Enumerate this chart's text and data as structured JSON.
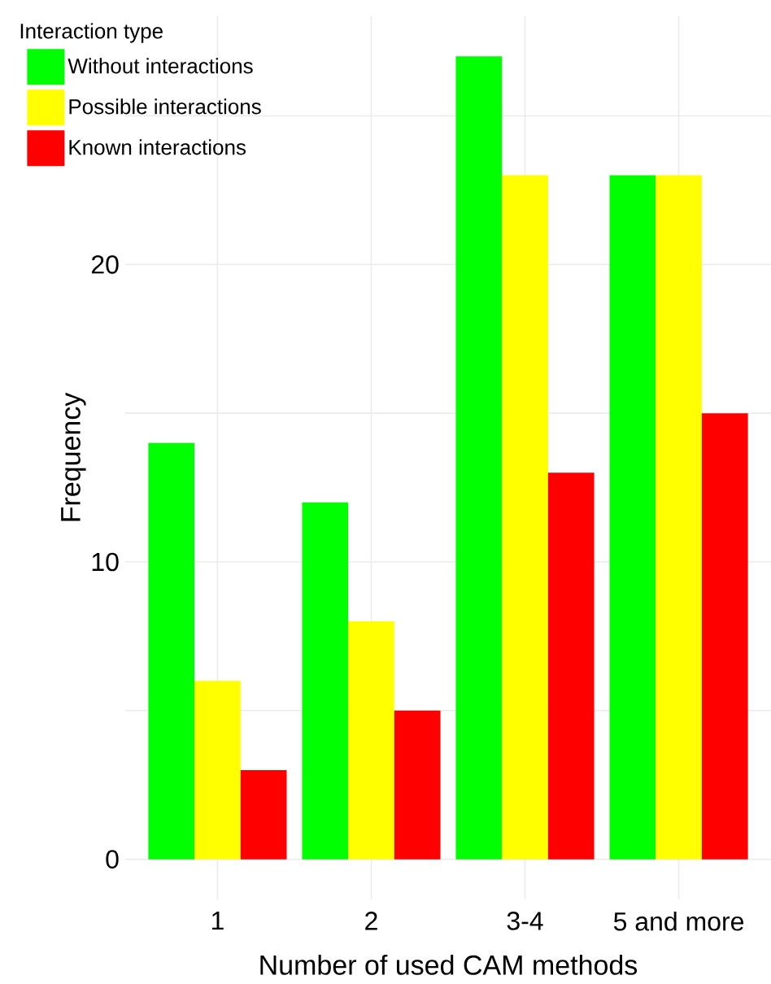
{
  "chart_data": {
    "type": "bar",
    "xlabel": "Number of used CAM methods",
    "ylabel": "Frequency",
    "legend_title": "Interaction type",
    "categories": [
      "1",
      "2",
      "3-4",
      "5 and more"
    ],
    "series": [
      {
        "name": "Without interactions",
        "color": "#00ff00",
        "values": [
          14,
          12,
          27,
          23
        ]
      },
      {
        "name": "Possible interactions",
        "color": "#ffff00",
        "values": [
          6,
          8,
          23,
          23
        ]
      },
      {
        "name": "Known interactions",
        "color": "#ff0000",
        "values": [
          3,
          5,
          13,
          15
        ]
      }
    ],
    "ylim": [
      -1.35,
      28.35
    ],
    "yticks": [
      0,
      {
        "value": 5,
        "label": null
      },
      10,
      {
        "value": 15,
        "label": null
      },
      20,
      {
        "value": 25,
        "label": null
      }
    ],
    "grid": true,
    "legend": "top left"
  }
}
